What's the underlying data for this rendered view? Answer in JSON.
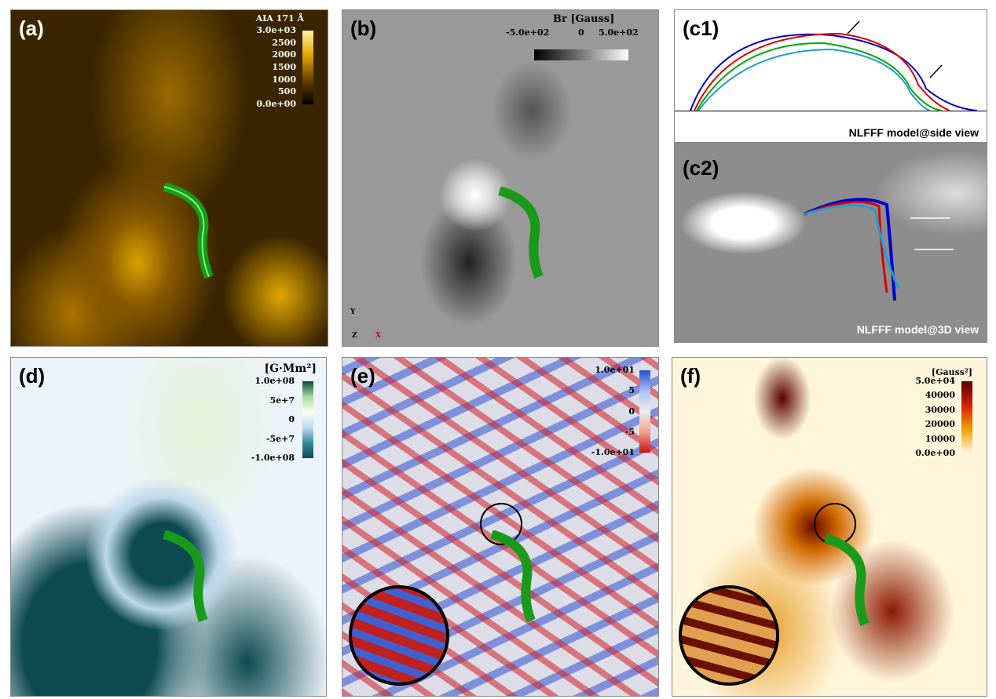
{
  "panels": {
    "a": {
      "label": "(a)",
      "colorbar_title": "AIA 171 Å",
      "ticks": [
        "3.0e+03",
        "2500",
        "2000",
        "1500",
        "1000",
        "500",
        "0.0e+00"
      ]
    },
    "b": {
      "label": "(b)",
      "colorbar_title": "Br [Gauss]",
      "ticks": [
        "-5.0e+02",
        "0",
        "5.0e+02"
      ],
      "axes": {
        "y": "Y",
        "z": "Z",
        "x": "X"
      }
    },
    "c1": {
      "label": "(c1)",
      "caption": "NLFFF model@side view"
    },
    "c2": {
      "label": "(c2)",
      "caption": "NLFFF model@3D view"
    },
    "d": {
      "label": "(d)",
      "colorbar_title": "[G·Mm²]",
      "ticks": [
        "1.0e+08",
        "5e+7",
        "0",
        "-5e+7",
        "-1.0e+08"
      ]
    },
    "e": {
      "label": "(e)",
      "ticks": [
        "1.0e+01",
        "5",
        "0",
        "-5",
        "-1.0e+01"
      ]
    },
    "f": {
      "label": "(f)",
      "colorbar_title": "[Gauss²]",
      "ticks": [
        "5.0e+04",
        "40000",
        "30000",
        "20000",
        "10000",
        "0.0e+00"
      ]
    }
  },
  "colors": {
    "rope": "#1a9a1a",
    "rope_variants": [
      "#0000cc",
      "#dd0000",
      "#00aa00",
      "#1aa0d0"
    ]
  }
}
